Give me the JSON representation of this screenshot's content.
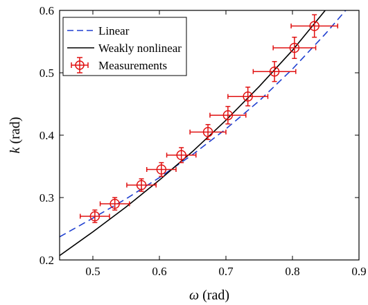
{
  "chart_data": {
    "type": "line",
    "xlabel": {
      "symbol": "ω",
      "unit": " (rad)"
    },
    "ylabel": {
      "symbol": "k",
      "unit": " (rad)"
    },
    "xlim": [
      0.45,
      0.9
    ],
    "ylim": [
      0.2,
      0.6
    ],
    "x_ticks": [
      "0.5",
      "0.6",
      "0.7",
      "0.8",
      "0.9"
    ],
    "x_tick_values": [
      0.5,
      0.6,
      0.7,
      0.8,
      0.9
    ],
    "y_ticks": [
      "0.2",
      "0.3",
      "0.4",
      "0.5",
      "0.6"
    ],
    "y_tick_values": [
      0.2,
      0.3,
      0.4,
      0.5,
      0.6
    ],
    "grid": false,
    "legend_position": "top-left",
    "series": [
      {
        "name": "Linear",
        "style": "dashed",
        "color": "#1f3fd0",
        "x": [
          0.45,
          0.5,
          0.55,
          0.6,
          0.65,
          0.7,
          0.75,
          0.8,
          0.85,
          0.88
        ],
        "y": [
          0.237,
          0.267,
          0.298,
          0.332,
          0.369,
          0.41,
          0.455,
          0.506,
          0.563,
          0.6
        ]
      },
      {
        "name": "Weakly nonlinear",
        "style": "solid",
        "color": "#000000",
        "x": [
          0.45,
          0.5,
          0.55,
          0.6,
          0.65,
          0.7,
          0.75,
          0.8,
          0.85,
          0.87
        ],
        "y": [
          0.207,
          0.245,
          0.285,
          0.328,
          0.374,
          0.424,
          0.478,
          0.536,
          0.601,
          0.629
        ]
      },
      {
        "name": "Measurements",
        "style": "errorbar",
        "color": "#e01010",
        "points": [
          {
            "x": 0.503,
            "y": 0.27,
            "xerr": 0.022,
            "yerr": 0.01
          },
          {
            "x": 0.533,
            "y": 0.29,
            "xerr": 0.022,
            "yerr": 0.01
          },
          {
            "x": 0.573,
            "y": 0.32,
            "xerr": 0.022,
            "yerr": 0.01
          },
          {
            "x": 0.603,
            "y": 0.345,
            "xerr": 0.022,
            "yerr": 0.011
          },
          {
            "x": 0.633,
            "y": 0.368,
            "xerr": 0.022,
            "yerr": 0.012
          },
          {
            "x": 0.673,
            "y": 0.405,
            "xerr": 0.027,
            "yerr": 0.012
          },
          {
            "x": 0.703,
            "y": 0.432,
            "xerr": 0.027,
            "yerr": 0.014
          },
          {
            "x": 0.733,
            "y": 0.462,
            "xerr": 0.03,
            "yerr": 0.015
          },
          {
            "x": 0.773,
            "y": 0.502,
            "xerr": 0.032,
            "yerr": 0.016
          },
          {
            "x": 0.803,
            "y": 0.54,
            "xerr": 0.032,
            "yerr": 0.017
          },
          {
            "x": 0.833,
            "y": 0.575,
            "xerr": 0.035,
            "yerr": 0.018
          }
        ]
      }
    ]
  }
}
